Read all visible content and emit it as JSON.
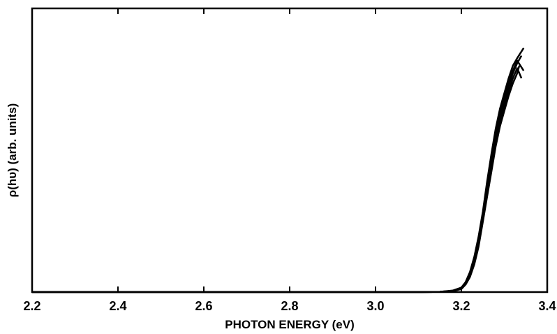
{
  "chart_data": {
    "type": "line",
    "title": "",
    "xlabel": "PHOTON ENERGY (eV)",
    "ylabel": "ρ(hυ) (arb. units)",
    "xlim": [
      2.2,
      3.4
    ],
    "ylim": [
      0,
      1
    ],
    "x_ticks": [
      "2.2",
      "2.4",
      "2.6",
      "2.8",
      "3.0",
      "3.2",
      "3.4"
    ],
    "y_ticks": [],
    "grid": false,
    "legend": "none",
    "line_color": "#000000",
    "series": [
      {
        "x": [
          2.2,
          2.4,
          2.6,
          2.8,
          3.0,
          3.1,
          3.15,
          3.18,
          3.2,
          3.21,
          3.22,
          3.23,
          3.24,
          3.25,
          3.26,
          3.27,
          3.28,
          3.29,
          3.3,
          3.31,
          3.32,
          3.33,
          3.335
        ],
        "values": [
          0,
          0,
          0,
          0,
          0,
          0,
          0.001,
          0.004,
          0.012,
          0.03,
          0.06,
          0.11,
          0.18,
          0.28,
          0.38,
          0.48,
          0.58,
          0.66,
          0.72,
          0.78,
          0.83,
          0.87,
          0.9
        ]
      },
      {
        "x": [
          2.2,
          2.4,
          2.6,
          2.8,
          3.0,
          3.1,
          3.15,
          3.18,
          3.2,
          3.21,
          3.22,
          3.23,
          3.24,
          3.25,
          3.26,
          3.27,
          3.28,
          3.29,
          3.3,
          3.31,
          3.32,
          3.33,
          3.34
        ],
        "values": [
          0,
          0,
          0,
          0,
          0,
          0,
          0.001,
          0.005,
          0.015,
          0.035,
          0.07,
          0.12,
          0.2,
          0.3,
          0.41,
          0.52,
          0.62,
          0.7,
          0.76,
          0.82,
          0.87,
          0.91,
          0.94
        ]
      },
      {
        "x": [
          2.2,
          2.4,
          2.6,
          2.8,
          3.0,
          3.1,
          3.15,
          3.18,
          3.2,
          3.21,
          3.22,
          3.23,
          3.24,
          3.25,
          3.26,
          3.27,
          3.28,
          3.29,
          3.3,
          3.31,
          3.32,
          3.33,
          3.345
        ],
        "values": [
          0,
          0,
          0,
          0,
          0,
          0,
          0.001,
          0.006,
          0.018,
          0.04,
          0.08,
          0.14,
          0.22,
          0.32,
          0.44,
          0.55,
          0.65,
          0.73,
          0.79,
          0.85,
          0.9,
          0.93,
          0.97
        ]
      },
      {
        "x": [
          2.2,
          2.4,
          2.6,
          2.8,
          3.0,
          3.1,
          3.15,
          3.18,
          3.2,
          3.21,
          3.22,
          3.23,
          3.24,
          3.25,
          3.26,
          3.27,
          3.28,
          3.29,
          3.3,
          3.31,
          3.32,
          3.33,
          3.34
        ],
        "values": [
          0,
          0,
          0,
          0,
          0,
          0,
          0.001,
          0.004,
          0.013,
          0.032,
          0.065,
          0.115,
          0.19,
          0.29,
          0.4,
          0.5,
          0.6,
          0.68,
          0.74,
          0.8,
          0.85,
          0.89,
          0.85
        ]
      },
      {
        "x": [
          2.2,
          2.4,
          2.6,
          2.8,
          3.0,
          3.1,
          3.15,
          3.18,
          3.2,
          3.21,
          3.22,
          3.23,
          3.24,
          3.25,
          3.26,
          3.27,
          3.28,
          3.29,
          3.3,
          3.31,
          3.32,
          3.33,
          3.345
        ],
        "values": [
          0,
          0,
          0,
          0,
          0,
          0,
          0.001,
          0.005,
          0.016,
          0.038,
          0.075,
          0.13,
          0.21,
          0.31,
          0.42,
          0.53,
          0.63,
          0.71,
          0.77,
          0.83,
          0.88,
          0.92,
          0.88
        ]
      }
    ]
  }
}
